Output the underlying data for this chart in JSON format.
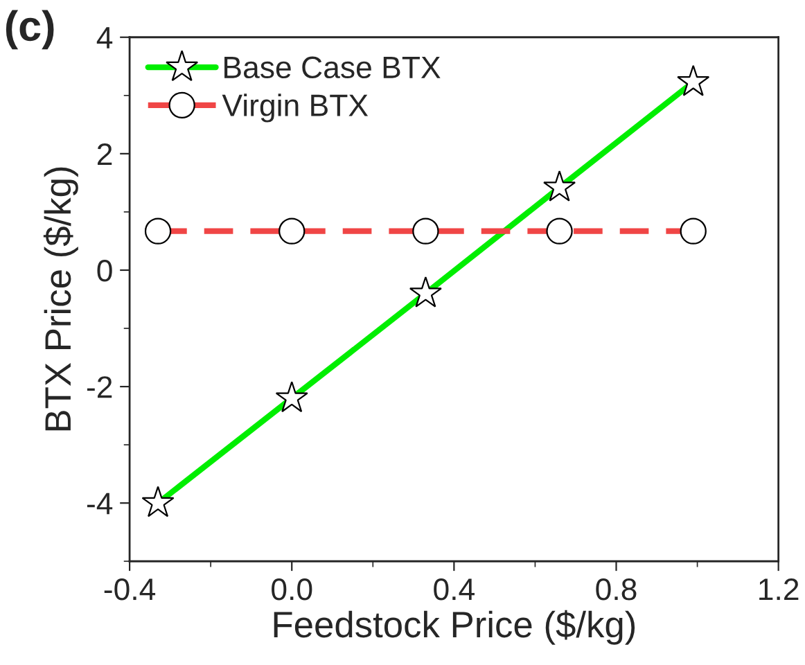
{
  "chart_data": {
    "type": "line",
    "title": "(c)",
    "xlabel": "Feedstock Price ($/kg)",
    "ylabel": "BTX Price ($/kg)",
    "x": [
      -0.33,
      0,
      0.33,
      0.66,
      0.99
    ],
    "series": [
      {
        "name": "Base Case BTX",
        "color": "#00ee00",
        "values": [
          -4.0,
          -2.2,
          -0.4,
          1.42,
          3.23
        ],
        "marker": "star",
        "line_style": "solid"
      },
      {
        "name": "Virgin BTX",
        "color": "#f04545",
        "values": [
          0.67,
          0.67,
          0.67,
          0.67,
          0.67
        ],
        "marker": "circle",
        "line_style": "dashed"
      }
    ],
    "xlim": [
      -0.4,
      1.2
    ],
    "xticks": [
      {
        "value": -0.4,
        "label": "-0.4"
      },
      {
        "value": 0,
        "label": "0.0"
      },
      {
        "value": 0.4,
        "label": "0.4"
      },
      {
        "value": 0.8,
        "label": "0.8"
      },
      {
        "value": 1.2,
        "label": "1.2"
      }
    ],
    "ylim": [
      -5,
      4
    ],
    "yticks": [
      -4,
      -2,
      0,
      2,
      4
    ],
    "grid": false,
    "legend": "top left"
  }
}
